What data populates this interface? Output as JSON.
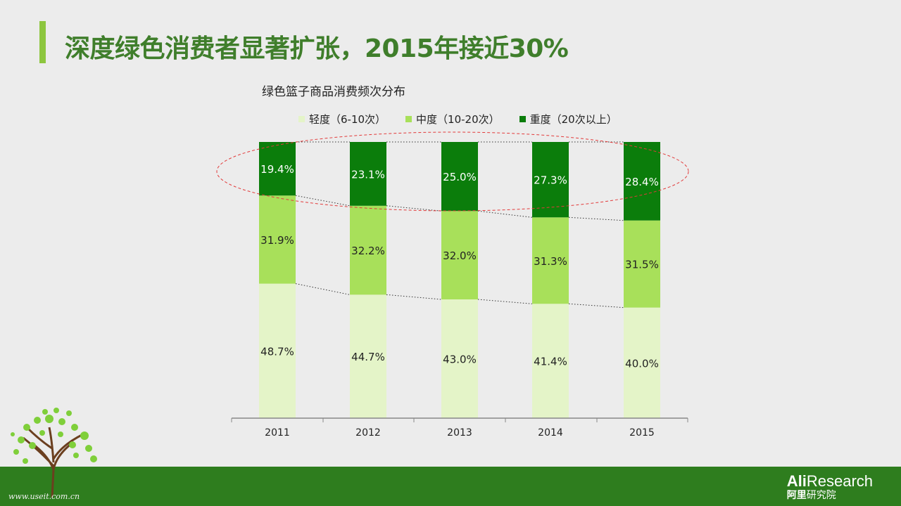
{
  "title": "深度绿色消费者显著扩张，2015年接近30%",
  "colors": {
    "light": "#e4f4c8",
    "medium": "#a8e05a",
    "heavy": "#0b7d0b",
    "title": "#3f7e2b",
    "footer": "#2e7d1e"
  },
  "chart_data": {
    "type": "bar",
    "stacked": true,
    "title": "绿色篮子商品消费频次分布",
    "categories": [
      "2011",
      "2012",
      "2013",
      "2014",
      "2015"
    ],
    "series": [
      {
        "name": "轻度（6-10次）",
        "values": [
          48.7,
          44.7,
          43.0,
          41.4,
          40.0
        ],
        "labels": [
          "48.7%",
          "44.7%",
          "43.0%",
          "41.4%",
          "40.0%"
        ]
      },
      {
        "name": "中度（10-20次）",
        "values": [
          31.9,
          32.2,
          32.0,
          31.3,
          31.5
        ],
        "labels": [
          "31.9%",
          "32.2%",
          "32.0%",
          "31.3%",
          "31.5%"
        ]
      },
      {
        "name": "重度（20次以上）",
        "values": [
          19.4,
          23.1,
          25.0,
          27.3,
          28.4
        ],
        "labels": [
          "19.4%",
          "23.1%",
          "25.0%",
          "27.3%",
          "28.4%"
        ]
      }
    ],
    "ylim": [
      0,
      100
    ],
    "legend_position": "top"
  },
  "logo": {
    "ali": "Ali",
    "research": "Research",
    "sub_bold": "阿里",
    "sub": "研究院"
  },
  "watermark": "www.useit.com.cn"
}
